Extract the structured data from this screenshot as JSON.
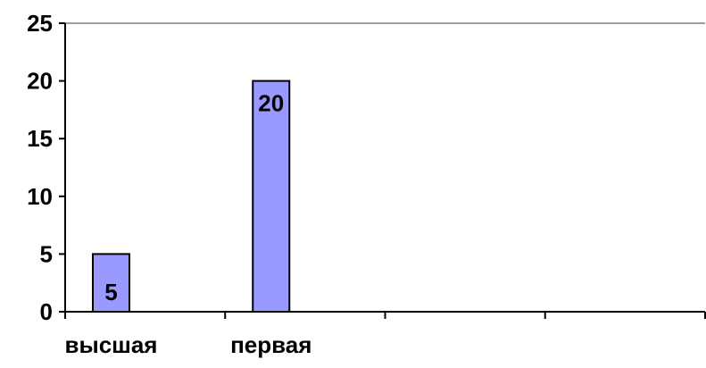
{
  "chart_data": {
    "type": "bar",
    "title": "",
    "xlabel": "",
    "ylabel": "",
    "categories": [
      "высшая",
      "первая",
      "",
      ""
    ],
    "values": [
      5,
      20,
      null,
      null
    ],
    "ylim": [
      0,
      25
    ],
    "yticks": [
      0,
      5,
      10,
      15,
      20,
      25
    ],
    "data_labels": [
      "5",
      "20",
      "",
      ""
    ],
    "grid": false,
    "legend": "none",
    "bar_color": "#9999ff",
    "bar_edge_color": "#000000"
  }
}
